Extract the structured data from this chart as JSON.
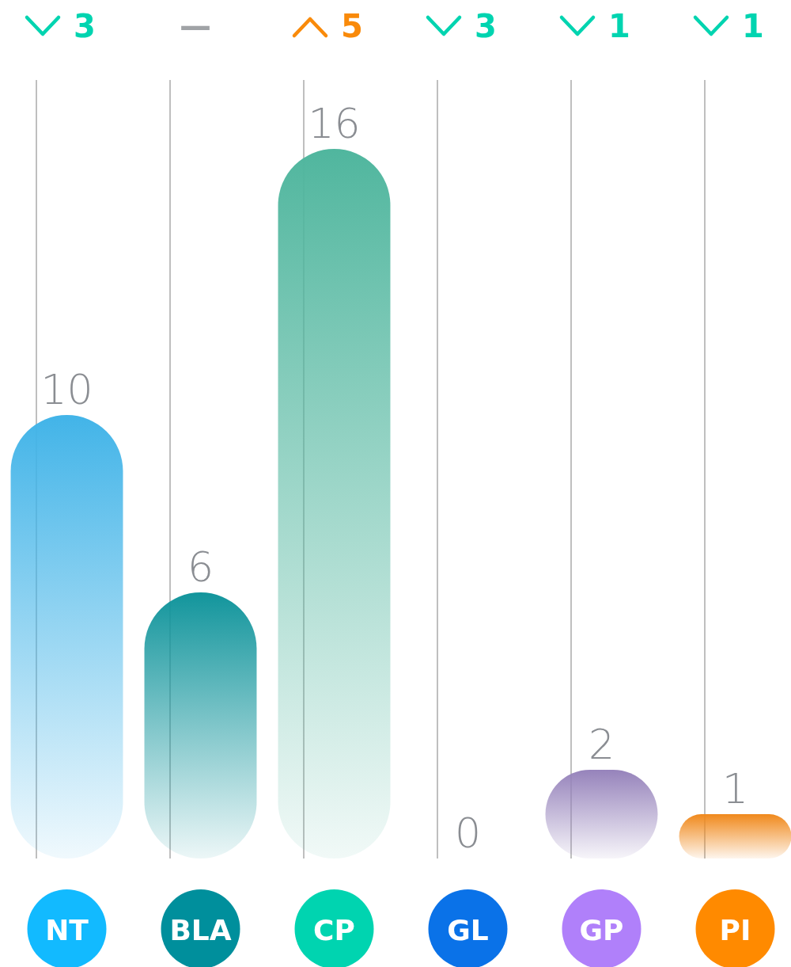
{
  "chart_data": {
    "type": "bar",
    "categories": [
      "NT",
      "BLA",
      "CP",
      "GL",
      "GP",
      "PI"
    ],
    "values": [
      10,
      6,
      16,
      0,
      2,
      1
    ],
    "colors": [
      "#42b4e8",
      "#12959c",
      "#50b69e",
      "#0a72e8",
      "#9683bb",
      "#f0891c"
    ],
    "ylim": [
      0,
      16
    ],
    "data_labels": true,
    "annotations": [
      "3",
      "—",
      "5",
      "3",
      "1",
      "1"
    ]
  }
}
